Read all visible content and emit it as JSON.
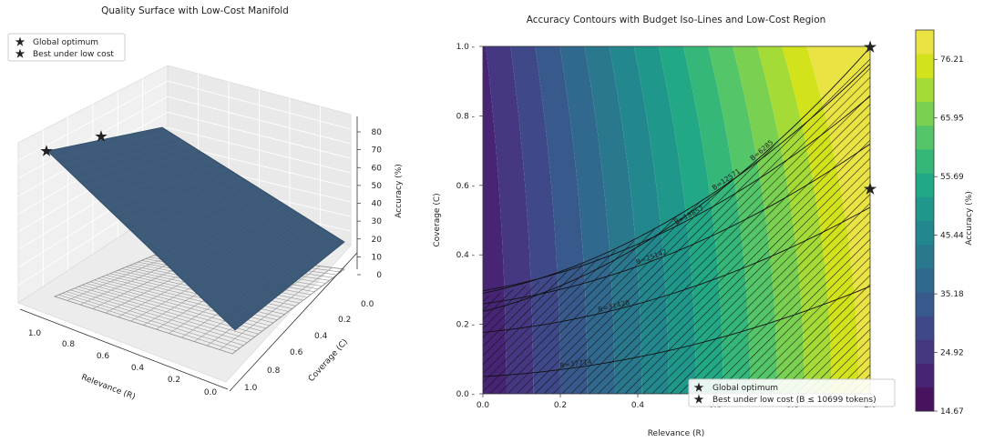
{
  "chart_data": [
    {
      "type": "surface3d",
      "title": "Quality Surface with Low-Cost Manifold",
      "xlabel": "Relevance (R)",
      "ylabel": "Coverage (C)",
      "x_ticks": [
        "1.0",
        "0.8",
        "0.6",
        "0.4",
        "0.2",
        "0.0"
      ],
      "y_ticks": [
        "0.0",
        "0.2",
        "0.4",
        "0.6",
        "0.8",
        "1.0"
      ],
      "z_ticks": [
        "0",
        "10",
        "20",
        "30",
        "40",
        "50",
        "60",
        "70",
        "80"
      ],
      "zlim": [
        0,
        80
      ],
      "surface_corners": [
        {
          "R": 1.0,
          "C": 0.0,
          "accuracy": 72
        },
        {
          "R": 1.0,
          "C": 1.0,
          "accuracy": 78
        },
        {
          "R": 0.0,
          "C": 0.0,
          "accuracy": 15
        },
        {
          "R": 0.0,
          "C": 1.0,
          "accuracy": 18
        }
      ],
      "markers": [
        {
          "name": "Global optimum",
          "R": 1.0,
          "C": 1.0,
          "accuracy": 78,
          "color": "#e8432e"
        },
        {
          "name": "Best under low cost",
          "R": 1.0,
          "C": 0.59,
          "accuracy": 76,
          "color": "#7de86b"
        }
      ],
      "legend": [
        {
          "label": "Global optimum",
          "color": "#e8432e"
        },
        {
          "label": "Best under low cost",
          "color": "#7de86b"
        }
      ],
      "legend_position": "top-left"
    },
    {
      "type": "contour",
      "title": "Accuracy Contours with Budget Iso-Lines and Low-Cost Region",
      "xlabel": "Relevance (R)",
      "ylabel": "Coverage (C)",
      "xlim": [
        0,
        1
      ],
      "ylim": [
        0,
        1
      ],
      "x_ticks": [
        "0.0",
        "0.2",
        "0.4",
        "0.6",
        "0.8",
        "1.0"
      ],
      "y_ticks": [
        "0.0",
        "0.2",
        "0.4",
        "0.6",
        "0.8",
        "1.0"
      ],
      "colorbar": {
        "label": "Accuracy (%)",
        "ticks": [
          "14.67",
          "24.92",
          "35.18",
          "45.44",
          "55.69",
          "65.95",
          "76.21"
        ],
        "min": 14.67,
        "max": 81.34,
        "colors": [
          "#47135f",
          "#482475",
          "#453781",
          "#3f4889",
          "#38598c",
          "#31688e",
          "#2a788e",
          "#23888e",
          "#1f988b",
          "#22a884",
          "#35b779",
          "#54c568",
          "#7ad151",
          "#a5db36",
          "#d2e21b",
          "#e9e343"
        ]
      },
      "budget_lines": [
        {
          "label": "B=37714",
          "value": 37714
        },
        {
          "label": "B=31428",
          "value": 31428
        },
        {
          "label": "B=25142",
          "value": 25142
        },
        {
          "label": "B=18857",
          "value": 18857
        },
        {
          "label": "B=12571",
          "value": 12571
        },
        {
          "label": "B=6285",
          "value": 6285
        }
      ],
      "low_cost_budget": 10699,
      "markers": [
        {
          "name": "Global optimum",
          "R": 1.0,
          "C": 1.0,
          "color": "#e8432e"
        },
        {
          "name": "Best under low cost",
          "R": 1.0,
          "C": 0.59,
          "color": "#7de86b"
        }
      ],
      "legend": [
        {
          "label": "Global optimum",
          "color": "#e8432e"
        },
        {
          "label": "Best under low cost (B ≤ 10699 tokens)",
          "color": "#7de86b"
        }
      ],
      "legend_position": "bottom-right"
    }
  ]
}
